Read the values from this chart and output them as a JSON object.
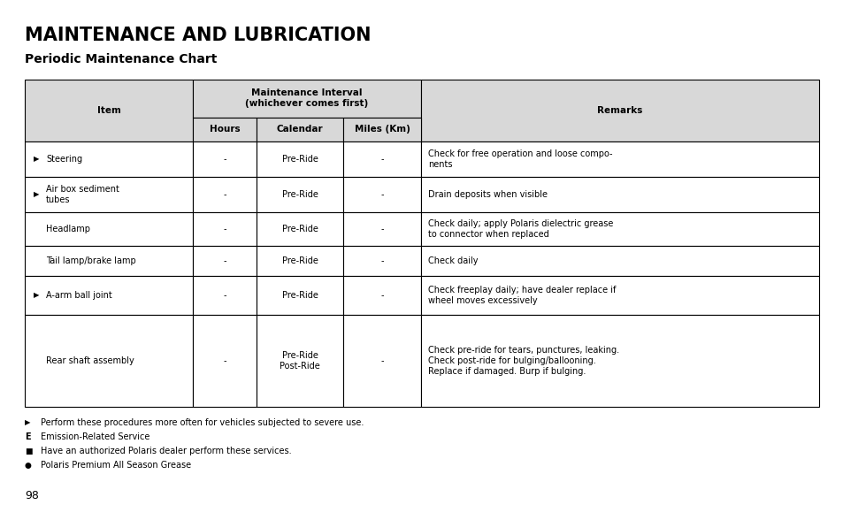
{
  "title": "MAINTENANCE AND LUBRICATION",
  "subtitle": "Periodic Maintenance Chart",
  "rows": [
    {
      "arrow": true,
      "item": "Steering",
      "hours": "-",
      "calendar": "Pre-Ride",
      "miles": "-",
      "remarks": "Check for free operation and loose compo-\nnents"
    },
    {
      "arrow": true,
      "item": "Air box sediment\ntubes",
      "hours": "-",
      "calendar": "Pre-Ride",
      "miles": "-",
      "remarks": "Drain deposits when visible"
    },
    {
      "arrow": false,
      "item": "Headlamp",
      "hours": "-",
      "calendar": "Pre-Ride",
      "miles": "-",
      "remarks": "Check daily; apply Polaris dielectric grease\nto connector when replaced"
    },
    {
      "arrow": false,
      "item": "Tail lamp/brake lamp",
      "hours": "-",
      "calendar": "Pre-Ride",
      "miles": "-",
      "remarks": "Check daily"
    },
    {
      "arrow": true,
      "item": "A-arm ball joint",
      "hours": "-",
      "calendar": "Pre-Ride",
      "miles": "-",
      "remarks": "Check freeplay daily; have dealer replace if\nwheel moves excessively"
    },
    {
      "arrow": false,
      "item": "Rear shaft assembly",
      "hours": "-",
      "calendar": "Pre-Ride\nPost-Ride",
      "miles": "-",
      "remarks": "Check pre-ride for tears, punctures, leaking.\nCheck post-ride for bulging/ballooning.\nReplace if damaged. Burp if bulging."
    }
  ],
  "footnotes": [
    {
      "symbol": "arrow",
      "text": "Perform these procedures more often for vehicles subjected to severe use."
    },
    {
      "symbol": "E",
      "text": "Emission-Related Service"
    },
    {
      "symbol": "square",
      "text": "Have an authorized Polaris dealer perform these services."
    },
    {
      "symbol": "circle",
      "text": "Polaris Premium All Season Grease"
    }
  ],
  "page_number": "98",
  "bg": "#ffffff",
  "fg": "#000000",
  "header_bg": "#d8d8d8",
  "title_size": 15,
  "subtitle_size": 10,
  "header_size": 7.5,
  "cell_size": 7.0,
  "footnote_size": 7.0,
  "page_size": 9
}
